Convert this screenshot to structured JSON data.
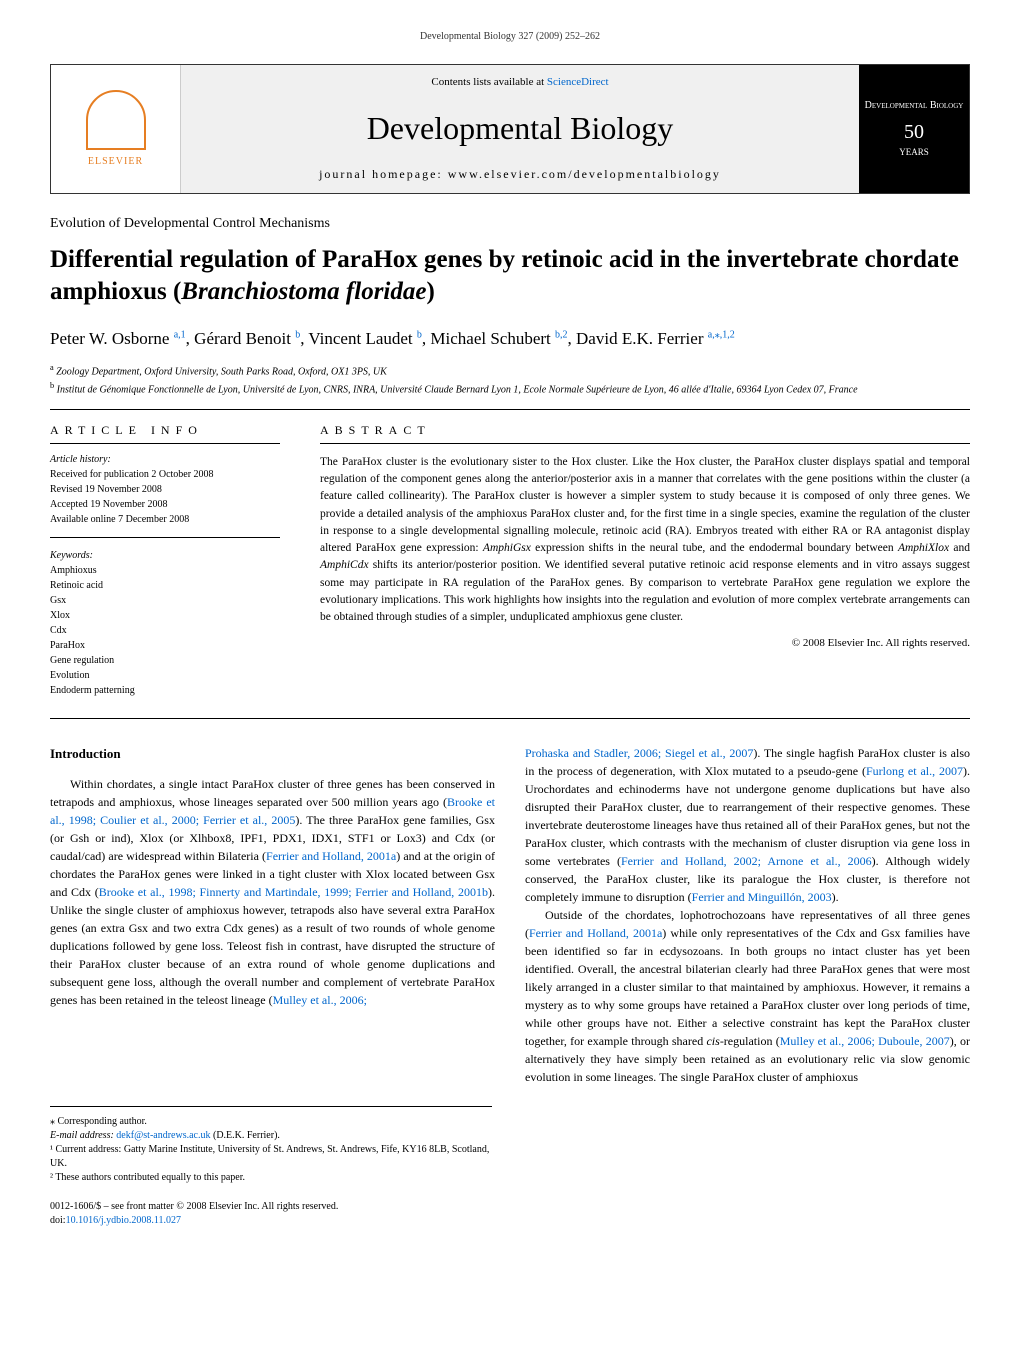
{
  "running_header": "Developmental Biology 327 (2009) 252–262",
  "banner": {
    "publisher": "ELSEVIER",
    "sciencedirect_prefix": "Contents lists available at ",
    "sciencedirect_link": "ScienceDirect",
    "journal_name": "Developmental Biology",
    "homepage": "journal homepage: www.elsevier.com/developmentalbiology",
    "right_title": "Developmental Biology",
    "right_years": "50",
    "right_label": "YEARS"
  },
  "section": "Evolution of Developmental Control Mechanisms",
  "title": "Differential regulation of ParaHox genes by retinoic acid in the invertebrate chordate amphioxus (Branchiostoma floridae)",
  "authors_html": "Peter W. Osborne <sup>a,1</sup>, Gérard Benoit <sup>b</sup>, Vincent Laudet <sup>b</sup>, Michael Schubert <sup>b,2</sup>, David E.K. Ferrier <sup>a,⁎,1,2</sup>",
  "affiliations": {
    "a": "Zoology Department, Oxford University, South Parks Road, Oxford, OX1 3PS, UK",
    "b": "Institut de Génomique Fonctionnelle de Lyon, Université de Lyon, CNRS, INRA, Université Claude Bernard Lyon 1, Ecole Normale Supérieure de Lyon, 46 allée d'Italie, 69364 Lyon Cedex 07, France"
  },
  "info_heading": "ARTICLE INFO",
  "history_label": "Article history:",
  "history": [
    "Received for publication 2 October 2008",
    "Revised 19 November 2008",
    "Accepted 19 November 2008",
    "Available online 7 December 2008"
  ],
  "keywords_label": "Keywords:",
  "keywords": [
    "Amphioxus",
    "Retinoic acid",
    "Gsx",
    "Xlox",
    "Cdx",
    "ParaHox",
    "Gene regulation",
    "Evolution",
    "Endoderm patterning"
  ],
  "abstract_heading": "ABSTRACT",
  "abstract": "The ParaHox cluster is the evolutionary sister to the Hox cluster. Like the Hox cluster, the ParaHox cluster displays spatial and temporal regulation of the component genes along the anterior/posterior axis in a manner that correlates with the gene positions within the cluster (a feature called collinearity). The ParaHox cluster is however a simpler system to study because it is composed of only three genes. We provide a detailed analysis of the amphioxus ParaHox cluster and, for the first time in a single species, examine the regulation of the cluster in response to a single developmental signalling molecule, retinoic acid (RA). Embryos treated with either RA or RA antagonist display altered ParaHox gene expression: AmphiGsx expression shifts in the neural tube, and the endodermal boundary between AmphiXlox and AmphiCdx shifts its anterior/posterior position. We identified several putative retinoic acid response elements and in vitro assays suggest some may participate in RA regulation of the ParaHox genes. By comparison to vertebrate ParaHox gene regulation we explore the evolutionary implications. This work highlights how insights into the regulation and evolution of more complex vertebrate arrangements can be obtained through studies of a simpler, unduplicated amphioxus gene cluster.",
  "copyright": "© 2008 Elsevier Inc. All rights reserved.",
  "intro_heading": "Introduction",
  "body": {
    "col1_p1": "Within chordates, a single intact ParaHox cluster of three genes has been conserved in tetrapods and amphioxus, whose lineages separated over 500 million years ago (Brooke et al., 1998; Coulier et al., 2000; Ferrier et al., 2005). The three ParaHox gene families, Gsx (or Gsh or ind), Xlox (or Xlhbox8, IPF1, PDX1, IDX1, STF1 or Lox3) and Cdx (or caudal/cad) are widespread within Bilateria (Ferrier and Holland, 2001a) and at the origin of chordates the ParaHox genes were linked in a tight cluster with Xlox located between Gsx and Cdx (Brooke et al., 1998; Finnerty and Martindale, 1999; Ferrier and Holland, 2001b). Unlike the single cluster of amphioxus however, tetrapods also have several extra ParaHox genes (an extra Gsx and two extra Cdx genes) as a result of two rounds of whole genome duplications followed by gene loss. Teleost fish in contrast, have disrupted the structure of their ParaHox cluster because of an extra round of whole genome duplications and subsequent gene loss, although the overall number and complement of vertebrate ParaHox genes has been retained in the teleost lineage (Mulley et al., 2006;",
    "col2_p1": "Prohaska and Stadler, 2006; Siegel et al., 2007). The single hagfish ParaHox cluster is also in the process of degeneration, with Xlox mutated to a pseudo-gene (Furlong et al., 2007). Urochordates and echinoderms have not undergone genome duplications but have also disrupted their ParaHox cluster, due to rearrangement of their respective genomes. These invertebrate deuterostome lineages have thus retained all of their ParaHox genes, but not the ParaHox cluster, which contrasts with the mechanism of cluster disruption via gene loss in some vertebrates (Ferrier and Holland, 2002; Arnone et al., 2006). Although widely conserved, the ParaHox cluster, like its paralogue the Hox cluster, is therefore not completely immune to disruption (Ferrier and Minguillón, 2003).",
    "col2_p2": "Outside of the chordates, lophotrochozoans have representatives of all three genes (Ferrier and Holland, 2001a) while only representatives of the Cdx and Gsx families have been identified so far in ecdysozoans. In both groups no intact cluster has yet been identified. Overall, the ancestral bilaterian clearly had three ParaHox genes that were most likely arranged in a cluster similar to that maintained by amphioxus. However, it remains a mystery as to why some groups have retained a ParaHox cluster over long periods of time, while other groups have not. Either a selective constraint has kept the ParaHox cluster together, for example through shared cis-regulation (Mulley et al., 2006; Duboule, 2007), or alternatively they have simply been retained as an evolutionary relic via slow genomic evolution in some lineages. The single ParaHox cluster of amphioxus"
  },
  "footnotes": {
    "corresponding": "⁎ Corresponding author.",
    "email_label": "E-mail address: ",
    "email": "dekf@st-andrews.ac.uk",
    "email_name": " (D.E.K. Ferrier).",
    "note1": "¹ Current address: Gatty Marine Institute, University of St. Andrews, St. Andrews, Fife, KY16 8LB, Scotland, UK.",
    "note2": "² These authors contributed equally to this paper."
  },
  "bottom": {
    "line1": "0012-1606/$ – see front matter © 2008 Elsevier Inc. All rights reserved.",
    "doi_label": "doi:",
    "doi": "10.1016/j.ydbio.2008.11.027"
  }
}
